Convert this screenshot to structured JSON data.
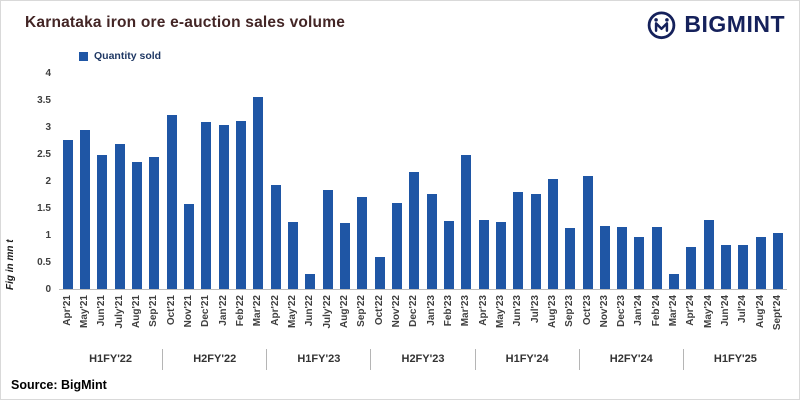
{
  "header": {
    "title": "Karnataka iron ore e-auction sales volume",
    "brand": "BIGMINT"
  },
  "legend": {
    "label": "Quantity sold"
  },
  "source": "Source: BigMint",
  "colors": {
    "bar": "#1F56A5",
    "title": "#432525",
    "brand": "#15215B",
    "legend_text": "#1F3864",
    "axis_text": "#3f3f3f"
  },
  "chart_data": {
    "type": "bar",
    "title": "Karnataka iron ore e-auction sales volume",
    "xlabel": "",
    "ylabel": "Fig in mn t",
    "ylim": [
      0,
      4
    ],
    "yticks": [
      0,
      0.5,
      1,
      1.5,
      2,
      2.5,
      3,
      3.5,
      4
    ],
    "grid": false,
    "legend_position": "top-left",
    "legend_entries": [
      "Quantity sold"
    ],
    "categories": [
      "Apr'21",
      "May'21",
      "Jun'21",
      "July'21",
      "Aug'21",
      "Sep'21",
      "Oct'21",
      "Nov'21",
      "Dec'21",
      "Jan'22",
      "Feb'22",
      "Mar'22",
      "Apr'22",
      "May'22",
      "Jun'22",
      "July'22",
      "Aug'22",
      "Sep'22",
      "Oct'22",
      "Nov'22",
      "Dec'22",
      "Jan'23",
      "Feb'23",
      "Mar'23",
      "Apr'23",
      "May'23",
      "Jun'23",
      "Jul'23",
      "Aug'23",
      "Sep'23",
      "Oct'23",
      "Nov'23",
      "Dec'23",
      "Jan'24",
      "Feb'24",
      "Mar'24",
      "Apr'24",
      "May'24",
      "Jun'24",
      "Jul'24",
      "Aug'24",
      "Sept'24"
    ],
    "values": [
      2.78,
      2.95,
      2.5,
      2.7,
      2.36,
      2.45,
      3.24,
      1.59,
      3.1,
      3.06,
      3.13,
      3.58,
      1.94,
      1.25,
      0.28,
      1.84,
      1.22,
      1.71,
      0.59,
      1.6,
      2.18,
      1.77,
      1.27,
      2.49,
      1.29,
      1.25,
      1.81,
      1.77,
      2.05,
      1.14,
      2.1,
      1.18,
      1.16,
      0.96,
      1.16,
      0.28,
      0.79,
      1.29,
      0.81,
      0.81,
      0.96,
      1.05
    ],
    "groups": [
      {
        "label": "H1FY'22",
        "span": 6
      },
      {
        "label": "H2FY'22",
        "span": 6
      },
      {
        "label": "H1FY'23",
        "span": 6
      },
      {
        "label": "H2FY'23",
        "span": 6
      },
      {
        "label": "H1FY'24",
        "span": 6
      },
      {
        "label": "H2FY'24",
        "span": 6
      },
      {
        "label": "H1FY'25",
        "span": 6
      }
    ]
  }
}
